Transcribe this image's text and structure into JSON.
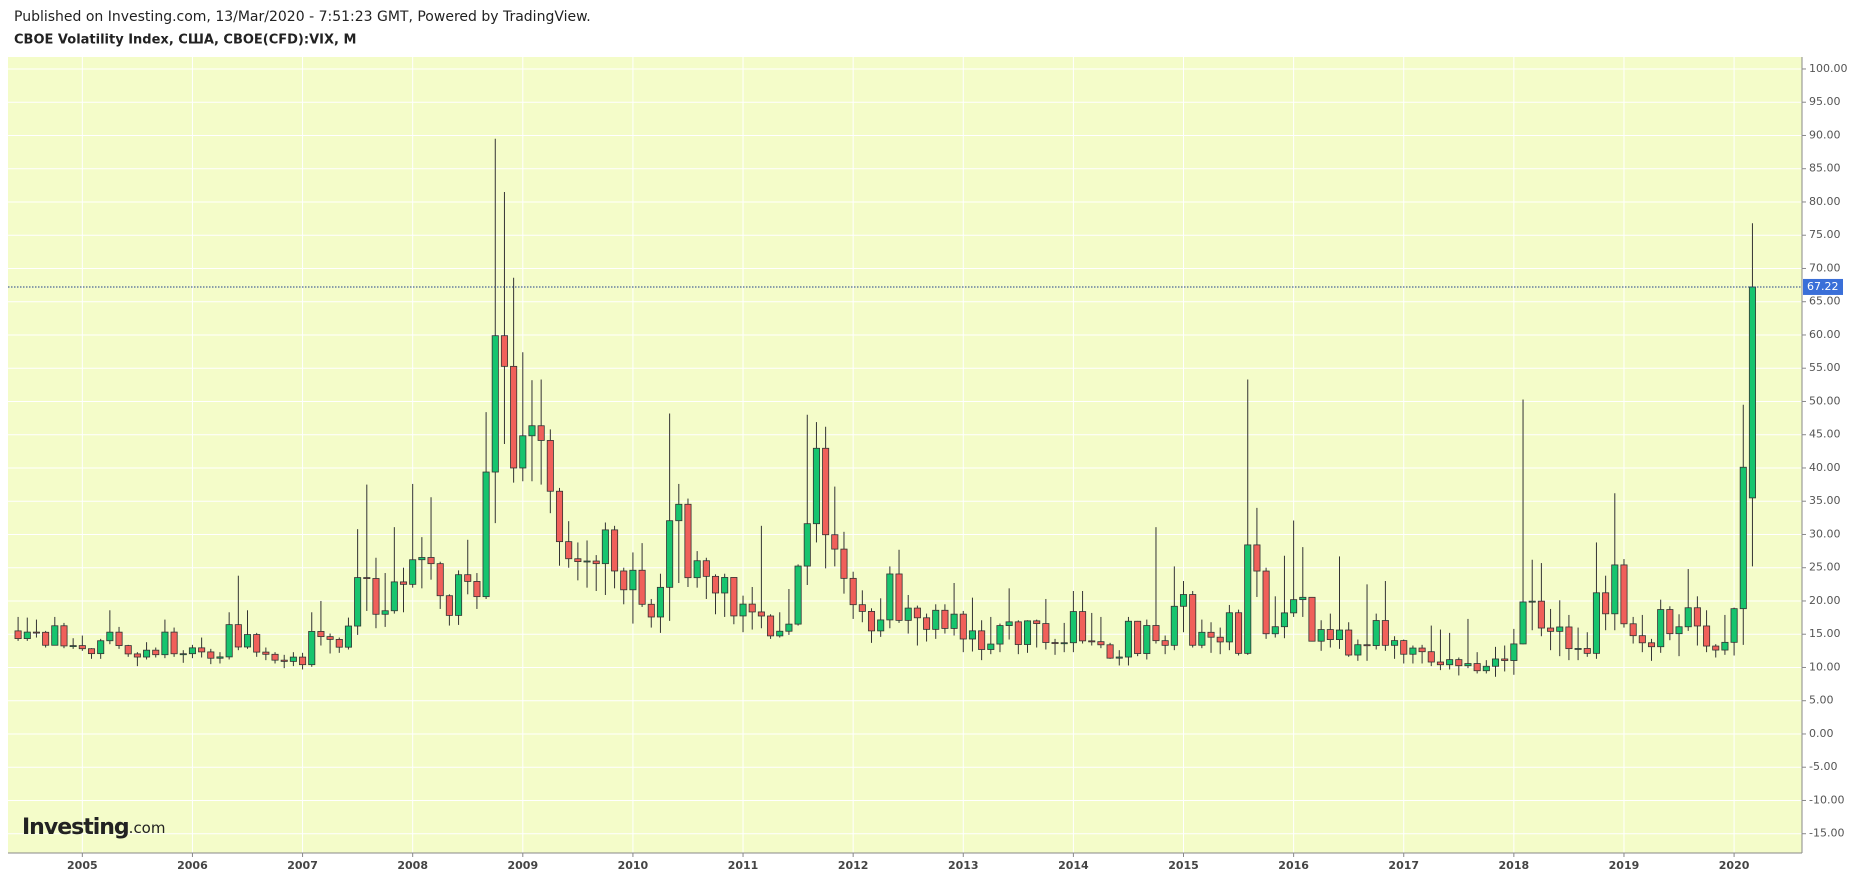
{
  "chart_data": {
    "type": "candlestick",
    "published": "Published on Investing.com, 13/Mar/2020 - 7:51:23 GMT, Powered by TradingView.",
    "title": "CBOE Volatility Index, США, CBOE(CFD):VIX, M",
    "watermark_brand": "Investing",
    "watermark_suffix": ".com",
    "up_color": "#17c46e",
    "down_color": "#f0605a",
    "grid": true,
    "ylim": [
      -17.9,
      101.8
    ],
    "yticks": [
      {
        "value": 100,
        "label": "100.00"
      },
      {
        "value": 95,
        "label": "95.00"
      },
      {
        "value": 90,
        "label": "90.00"
      },
      {
        "value": 85,
        "label": "85.00"
      },
      {
        "value": 80,
        "label": "80.00"
      },
      {
        "value": 75,
        "label": "75.00"
      },
      {
        "value": 70,
        "label": "70.00"
      },
      {
        "value": 65,
        "label": "65.00"
      },
      {
        "value": 60,
        "label": "60.00"
      },
      {
        "value": 55,
        "label": "55.00"
      },
      {
        "value": 50,
        "label": "50.00"
      },
      {
        "value": 45,
        "label": "45.00"
      },
      {
        "value": 40,
        "label": "40.00"
      },
      {
        "value": 35,
        "label": "35.00"
      },
      {
        "value": 30,
        "label": "30.00"
      },
      {
        "value": 25,
        "label": "25.00"
      },
      {
        "value": 20,
        "label": "20.00"
      },
      {
        "value": 15,
        "label": "15.00"
      },
      {
        "value": 10,
        "label": "10.00"
      },
      {
        "value": 5,
        "label": "5.00"
      },
      {
        "value": 0,
        "label": "0.00"
      },
      {
        "value": -5,
        "label": "-5.00"
      },
      {
        "value": -10,
        "label": "-10.00"
      },
      {
        "value": -15,
        "label": "-15.00"
      }
    ],
    "categories": [
      null,
      null,
      null,
      null,
      null,
      null,
      null,
      "2005",
      null,
      null,
      null,
      null,
      null,
      null,
      null,
      null,
      null,
      null,
      null,
      "2006",
      null,
      null,
      null,
      null,
      null,
      null,
      null,
      null,
      null,
      null,
      null,
      "2007",
      null,
      null,
      null,
      null,
      null,
      null,
      null,
      null,
      null,
      null,
      null,
      "2008",
      null,
      null,
      null,
      null,
      null,
      null,
      null,
      null,
      null,
      null,
      null,
      "2009",
      null,
      null,
      null,
      null,
      null,
      null,
      null,
      null,
      null,
      null,
      null,
      "2010",
      null,
      null,
      null,
      null,
      null,
      null,
      null,
      null,
      null,
      null,
      null,
      "2011",
      null,
      null,
      null,
      null,
      null,
      null,
      null,
      null,
      null,
      null,
      null,
      "2012",
      null,
      null,
      null,
      null,
      null,
      null,
      null,
      null,
      null,
      null,
      null,
      "2013",
      null,
      null,
      null,
      null,
      null,
      null,
      null,
      null,
      null,
      null,
      null,
      "2014",
      null,
      null,
      null,
      null,
      null,
      null,
      null,
      null,
      null,
      null,
      null,
      "2015",
      null,
      null,
      null,
      null,
      null,
      null,
      null,
      null,
      null,
      null,
      null,
      "2016",
      null,
      null,
      null,
      null,
      null,
      null,
      null,
      null,
      null,
      null,
      null,
      "2017",
      null,
      null,
      null,
      null,
      null,
      null,
      null,
      null,
      null,
      null,
      null,
      "2018",
      null,
      null,
      null,
      null,
      null,
      null,
      null,
      null,
      null,
      null,
      null,
      "2019",
      null,
      null,
      null,
      null,
      null,
      null,
      null,
      null,
      null,
      null,
      null,
      "2020",
      null,
      null
    ],
    "open": [
      15.5,
      14.34,
      15.32,
      15.29,
      13.34,
      16.27,
      13.24,
      13.29,
      12.82,
      12.08,
      14.02,
      15.31,
      13.29,
      12.04,
      11.57,
      12.6,
      11.92,
      15.32,
      12.06,
      12.07,
      12.95,
      12.34,
      11.39,
      11.59,
      16.44,
      13.08,
      14.95,
      12.31,
      11.98,
      11.1,
      10.91,
      11.56,
      10.42,
      15.42,
      14.64,
      14.22,
      13.05,
      16.23,
      23.52,
      23.38,
      18.0,
      18.53,
      22.87,
      22.5,
      26.2,
      26.54,
      25.61,
      20.79,
      17.83,
      23.95,
      22.94,
      20.65,
      39.39,
      59.89,
      55.28,
      40.0,
      44.84,
      46.35,
      44.14,
      36.5,
      28.92,
      26.35,
      25.92,
      26.01,
      25.61,
      30.69,
      24.51,
      21.68,
      24.62,
      19.5,
      17.59,
      22.05,
      32.07,
      34.54,
      23.5,
      26.05,
      23.7,
      21.2,
      23.54,
      17.75,
      19.53,
      18.35,
      17.74,
      14.75,
      15.45,
      16.52,
      25.25,
      31.62,
      42.96,
      29.96,
      27.8,
      23.4,
      19.44,
      18.43,
      15.5,
      17.15,
      24.06,
      17.08,
      18.93,
      17.47,
      15.73,
      18.6,
      15.87,
      18.02,
      14.28,
      15.51,
      12.7,
      13.52,
      16.3,
      16.86,
      13.45,
      17.01,
      16.6,
      13.75,
      13.7,
      13.72,
      18.41,
      14.0,
      13.88,
      13.41,
      11.4,
      11.57,
      16.95,
      12.09,
      16.31,
      14.03,
      13.33,
      19.2,
      20.97,
      13.34,
      15.29,
      14.55,
      13.84,
      18.23,
      12.12,
      28.43,
      24.5,
      15.07,
      16.13,
      18.21,
      20.2,
      20.55,
      13.95,
      15.7,
      14.19,
      15.63,
      11.87,
      13.42,
      13.29,
      17.06,
      13.33,
      14.04,
      11.99,
      12.92,
      12.37,
      10.82,
      10.41,
      11.18,
      10.26,
      10.59,
      9.51,
      10.18,
      11.28,
      11.04,
      13.54,
      19.85,
      19.97,
      15.93,
      15.43,
      16.09,
      12.83,
      12.86,
      12.12,
      21.23,
      18.07,
      25.42,
      16.57,
      14.78,
      13.71,
      13.12,
      18.71,
      15.08,
      16.12,
      18.98,
      16.24,
      13.22,
      12.62,
      13.78,
      18.84,
      35.5
    ],
    "high": [
      17.6,
      17.5,
      17.2,
      15.5,
      17.6,
      16.7,
      14.4,
      14.8,
      12.9,
      14.3,
      18.6,
      16.1,
      13.4,
      12.3,
      13.8,
      13.0,
      17.2,
      16.0,
      12.6,
      13.4,
      14.5,
      12.8,
      12.3,
      18.3,
      23.8,
      18.6,
      15.2,
      13.0,
      12.3,
      11.9,
      12.3,
      12.2,
      18.3,
      20.0,
      15.1,
      14.5,
      17.5,
      30.8,
      37.5,
      26.5,
      24.2,
      31.1,
      25.0,
      37.6,
      29.6,
      35.6,
      25.9,
      21.0,
      24.6,
      29.2,
      24.2,
      48.4,
      89.5,
      81.5,
      68.6,
      57.4,
      53.2,
      53.3,
      45.8,
      37.0,
      32.0,
      28.8,
      29.1,
      26.9,
      31.8,
      31.3,
      25.0,
      27.3,
      28.7,
      20.3,
      24.1,
      48.2,
      37.6,
      35.4,
      27.5,
      26.5,
      24.0,
      24.1,
      23.6,
      20.8,
      22.1,
      31.3,
      18.0,
      18.3,
      21.8,
      25.5,
      48.0,
      46.9,
      46.2,
      37.2,
      30.4,
      24.4,
      21.6,
      18.9,
      20.4,
      25.2,
      27.7,
      20.9,
      19.3,
      18.1,
      19.5,
      19.5,
      22.7,
      18.5,
      20.5,
      17.1,
      17.6,
      16.6,
      21.9,
      17.1,
      17.1,
      17.2,
      20.3,
      14.3,
      16.7,
      21.5,
      21.5,
      18.2,
      17.6,
      13.7,
      12.6,
      17.6,
      17.0,
      17.2,
      31.1,
      14.8,
      25.2,
      23.0,
      21.5,
      17.2,
      16.8,
      16.0,
      19.4,
      18.7,
      53.3,
      34.0,
      25.0,
      20.7,
      26.8,
      32.1,
      28.1,
      20.6,
      17.1,
      18.1,
      26.7,
      16.8,
      14.2,
      22.5,
      18.1,
      23.0,
      14.7,
      14.2,
      13.3,
      13.4,
      16.3,
      15.7,
      15.2,
      11.5,
      17.3,
      12.3,
      11.1,
      13.1,
      13.3,
      15.8,
      50.3,
      26.2,
      25.7,
      18.8,
      20.1,
      17.9,
      16.0,
      15.3,
      28.8,
      23.8,
      36.2,
      26.3,
      17.6,
      17.9,
      14.3,
      20.2,
      19.2,
      18.0,
      24.8,
      20.7,
      18.6,
      13.5,
      17.9,
      19.0,
      49.5,
      76.8
    ],
    "low": [
      14.0,
      14.0,
      14.5,
      13.0,
      13.5,
      12.9,
      12.8,
      12.5,
      11.3,
      11.3,
      13.5,
      12.8,
      11.6,
      10.2,
      11.2,
      11.5,
      11.4,
      11.6,
      10.7,
      11.4,
      11.5,
      10.5,
      10.6,
      11.2,
      12.6,
      12.8,
      11.6,
      11.1,
      10.6,
      9.9,
      10.2,
      9.7,
      10.1,
      13.3,
      12.1,
      12.2,
      12.7,
      14.9,
      18.5,
      15.9,
      16.1,
      18.1,
      18.3,
      22.0,
      21.9,
      23.2,
      18.8,
      16.3,
      16.4,
      21.0,
      18.8,
      20.3,
      31.7,
      43.6,
      37.8,
      38.0,
      38.0,
      37.5,
      33.2,
      25.3,
      25.0,
      23.1,
      22.0,
      21.5,
      20.9,
      21.9,
      19.5,
      16.6,
      19.1,
      16.0,
      15.2,
      17.0,
      22.7,
      22.1,
      22.0,
      20.3,
      18.0,
      17.6,
      16.5,
      15.3,
      15.7,
      15.9,
      14.3,
      14.5,
      14.9,
      16.3,
      22.4,
      28.8,
      24.9,
      25.2,
      21.1,
      17.3,
      16.8,
      13.7,
      14.6,
      15.9,
      16.7,
      15.1,
      13.3,
      13.9,
      14.3,
      15.1,
      14.8,
      12.3,
      12.4,
      11.1,
      12.0,
      12.3,
      14.2,
      12.0,
      12.2,
      13.0,
      12.7,
      11.9,
      12.3,
      12.3,
      13.6,
      13.3,
      12.9,
      11.3,
      10.3,
      10.3,
      11.7,
      11.2,
      13.6,
      12.0,
      12.6,
      15.3,
      13.0,
      12.9,
      12.2,
      12.0,
      12.6,
      11.8,
      11.9,
      20.6,
      14.3,
      14.5,
      14.4,
      17.6,
      17.6,
      13.9,
      12.5,
      13.0,
      12.8,
      11.6,
      11.0,
      11.0,
      12.7,
      12.5,
      11.3,
      10.6,
      10.6,
      10.6,
      10.2,
      9.6,
      9.7,
      8.8,
      9.9,
      9.1,
      9.1,
      8.6,
      9.4,
      8.9,
      13.5,
      15.6,
      14.7,
      12.6,
      11.7,
      11.1,
      11.1,
      11.6,
      11.3,
      15.6,
      15.6,
      16.0,
      13.6,
      12.3,
      11.0,
      12.2,
      14.1,
      11.7,
      15.5,
      13.3,
      12.3,
      11.5,
      11.9,
      11.8,
      13.4,
      25.2
    ],
    "close": [
      14.34,
      15.32,
      15.29,
      13.34,
      16.27,
      13.24,
      13.29,
      12.82,
      12.08,
      14.02,
      15.31,
      13.29,
      12.04,
      11.57,
      12.6,
      11.92,
      15.32,
      12.06,
      12.07,
      12.95,
      12.34,
      11.39,
      11.59,
      16.44,
      13.08,
      14.95,
      12.31,
      11.98,
      11.1,
      10.91,
      11.56,
      10.42,
      15.42,
      14.64,
      14.22,
      13.05,
      16.23,
      23.52,
      23.38,
      18.0,
      18.53,
      22.87,
      22.5,
      26.2,
      26.54,
      25.61,
      20.79,
      17.83,
      23.95,
      22.94,
      20.65,
      39.39,
      59.89,
      55.28,
      40.0,
      44.84,
      46.35,
      44.14,
      36.5,
      28.92,
      26.35,
      25.92,
      26.01,
      25.61,
      30.69,
      24.51,
      21.68,
      24.62,
      19.5,
      17.59,
      22.05,
      32.07,
      34.54,
      23.5,
      26.05,
      23.7,
      21.2,
      23.54,
      17.75,
      19.53,
      18.35,
      17.74,
      14.75,
      15.45,
      16.52,
      25.25,
      31.62,
      42.96,
      29.96,
      27.8,
      23.4,
      19.44,
      18.43,
      15.5,
      17.15,
      24.06,
      17.08,
      18.93,
      17.47,
      15.73,
      18.6,
      15.87,
      18.02,
      14.28,
      15.51,
      12.7,
      13.52,
      16.3,
      16.86,
      13.45,
      17.01,
      16.6,
      13.75,
      13.7,
      13.72,
      18.41,
      14.0,
      13.88,
      13.41,
      11.4,
      11.57,
      16.95,
      12.09,
      16.31,
      14.03,
      13.33,
      19.2,
      20.97,
      13.34,
      15.29,
      14.55,
      13.84,
      18.23,
      12.12,
      28.43,
      24.5,
      15.07,
      16.13,
      18.21,
      20.2,
      20.55,
      13.95,
      15.7,
      14.19,
      15.63,
      11.87,
      13.42,
      13.29,
      17.06,
      13.33,
      14.04,
      11.99,
      12.92,
      12.37,
      10.82,
      10.41,
      11.18,
      10.26,
      10.59,
      9.51,
      10.18,
      11.28,
      11.04,
      13.54,
      19.85,
      19.97,
      15.93,
      15.43,
      16.09,
      12.83,
      12.86,
      12.12,
      21.23,
      18.07,
      25.42,
      16.57,
      14.78,
      13.71,
      13.12,
      18.71,
      15.08,
      16.12,
      18.98,
      16.24,
      13.22,
      12.62,
      13.78,
      18.84,
      40.11,
      67.22
    ]
  }
}
